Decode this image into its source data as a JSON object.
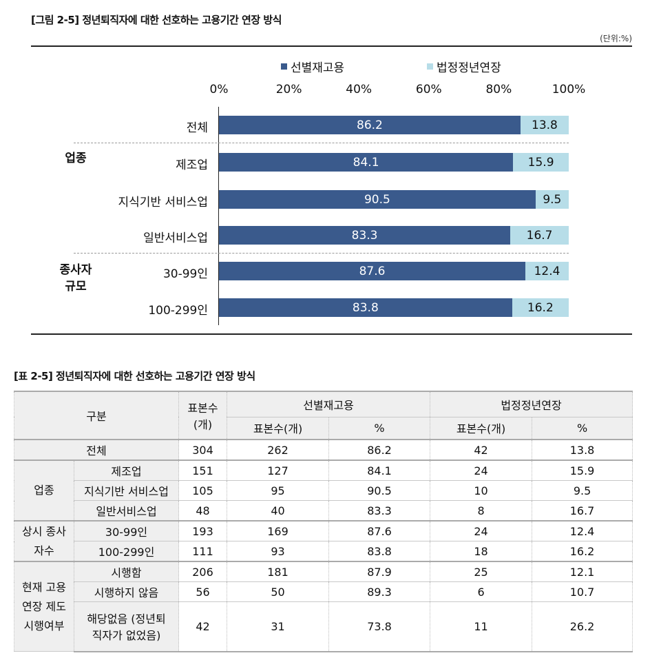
{
  "figure": {
    "title": "[그림 2-5] 정년퇴직자에 대한 선호하는 고용기간 연장 방식",
    "unit": "(단위:%)"
  },
  "chart_data": {
    "type": "bar",
    "orientation": "horizontal",
    "stacked": true,
    "categories": [
      "전체",
      "제조업",
      "지식기반 서비스업",
      "일반서비스업",
      "30-99인",
      "100-299인"
    ],
    "groups": [
      {
        "label": "업종",
        "categories": [
          "제조업",
          "지식기반 서비스업",
          "일반서비스업"
        ]
      },
      {
        "label": "종사자 규모",
        "lines": [
          "종사자",
          "규모"
        ],
        "categories": [
          "30-99인",
          "100-299인"
        ]
      }
    ],
    "series": [
      {
        "name": "선별재고용",
        "color": "#3a5a8c",
        "values": [
          86.2,
          84.1,
          90.5,
          83.3,
          87.6,
          83.8
        ]
      },
      {
        "name": "법정정년연장",
        "color": "#b7dde8",
        "values": [
          13.8,
          15.9,
          9.5,
          16.7,
          12.4,
          16.2
        ]
      }
    ],
    "xlim": [
      0,
      100
    ],
    "xticks": [
      "0%",
      "20%",
      "40%",
      "60%",
      "80%",
      "100%"
    ],
    "legend": "top"
  },
  "table": {
    "title": "[표 2-5] 정년퇴직자에 대한 선호하는 고용기간 연장 방식",
    "header": {
      "category": "구분",
      "sample": "표본수",
      "sample_unit": "(개)",
      "group1": "선별재고용",
      "group2": "법정정년연장",
      "sub_n": "표본수(개)",
      "sub_pct": "%"
    },
    "rows": [
      {
        "group": "",
        "label": "전체",
        "n": "304",
        "a_n": "262",
        "a_p": "86.2",
        "b_n": "42",
        "b_p": "13.8"
      },
      {
        "group": "업종",
        "label": "제조업",
        "n": "151",
        "a_n": "127",
        "a_p": "84.1",
        "b_n": "24",
        "b_p": "15.9"
      },
      {
        "group": "",
        "label": "지식기반 서비스업",
        "n": "105",
        "a_n": "95",
        "a_p": "90.5",
        "b_n": "10",
        "b_p": "9.5"
      },
      {
        "group": "",
        "label": "일반서비스업",
        "n": "48",
        "a_n": "40",
        "a_p": "83.3",
        "b_n": "8",
        "b_p": "16.7"
      },
      {
        "group": "상시 종사자수",
        "label": "30-99인",
        "n": "193",
        "a_n": "169",
        "a_p": "87.6",
        "b_n": "24",
        "b_p": "12.4"
      },
      {
        "group": "",
        "label": "100-299인",
        "n": "111",
        "a_n": "93",
        "a_p": "83.8",
        "b_n": "18",
        "b_p": "16.2"
      },
      {
        "group": "현재 고용연장 제도 시행여부",
        "label": "시행함",
        "n": "206",
        "a_n": "181",
        "a_p": "87.9",
        "b_n": "25",
        "b_p": "12.1"
      },
      {
        "group": "",
        "label": "시행하지 않음",
        "n": "56",
        "a_n": "50",
        "a_p": "89.3",
        "b_n": "6",
        "b_p": "10.7"
      },
      {
        "group": "",
        "label": "해당없음 (정년퇴직자가 없었음)",
        "n": "42",
        "a_n": "31",
        "a_p": "73.8",
        "b_n": "11",
        "b_p": "26.2"
      }
    ]
  }
}
